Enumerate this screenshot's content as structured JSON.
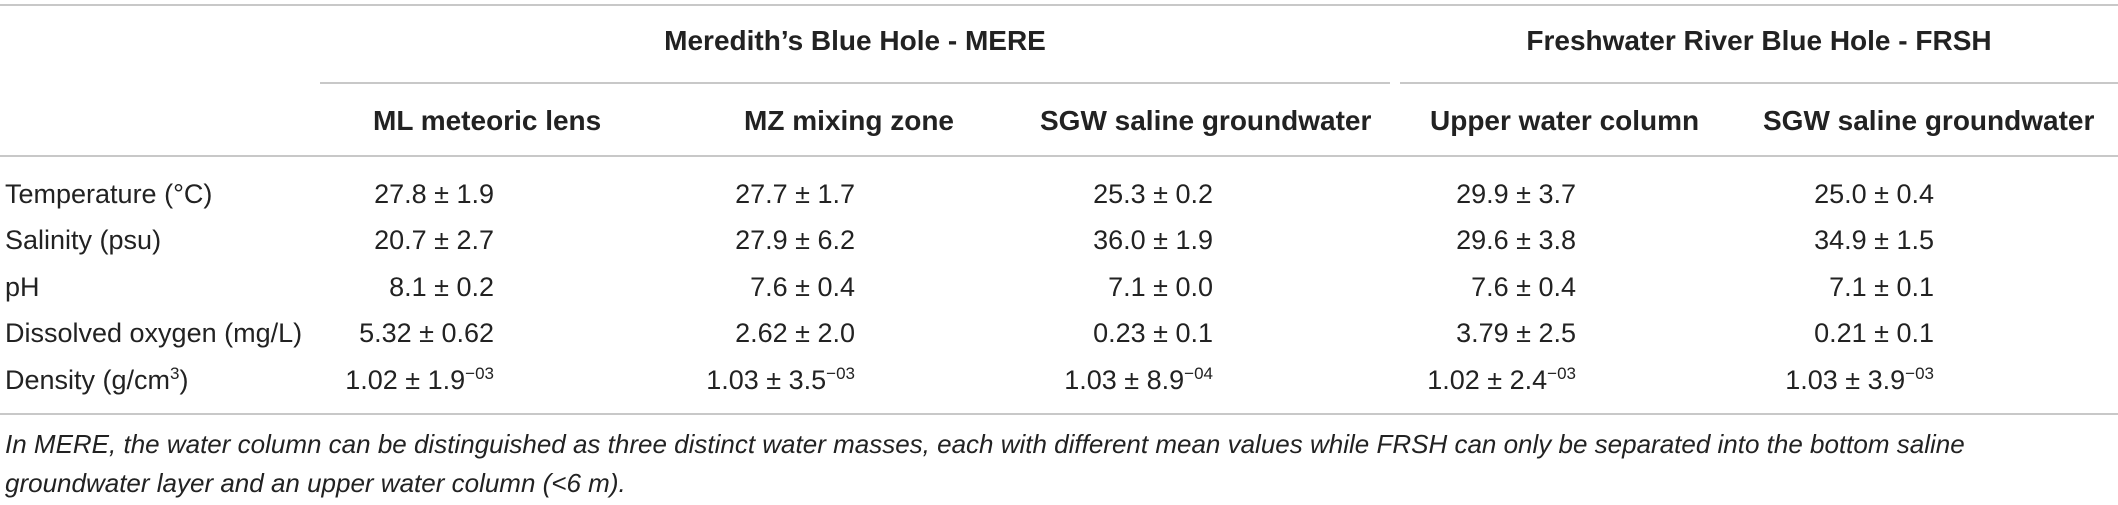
{
  "groups": [
    {
      "title": "Meredith’s Blue Hole - MERE"
    },
    {
      "title": "Freshwater River Blue Hole - FRSH"
    }
  ],
  "columns": [
    "ML meteoric lens",
    "MZ mixing zone",
    "SGW saline groundwater",
    "Upper water column",
    "SGW saline groundwater"
  ],
  "rows": [
    {
      "label": "Temperature (°C)",
      "label_sup": "",
      "label_after": "",
      "cells": [
        {
          "v": "27.8 ± 1.9",
          "exp": ""
        },
        {
          "v": "27.7 ± 1.7",
          "exp": ""
        },
        {
          "v": "25.3 ± 0.2",
          "exp": ""
        },
        {
          "v": "29.9 ± 3.7",
          "exp": ""
        },
        {
          "v": "25.0 ± 0.4",
          "exp": ""
        }
      ]
    },
    {
      "label": "Salinity (psu)",
      "label_sup": "",
      "label_after": "",
      "cells": [
        {
          "v": "20.7 ± 2.7",
          "exp": ""
        },
        {
          "v": "27.9 ± 6.2",
          "exp": ""
        },
        {
          "v": "36.0 ± 1.9",
          "exp": ""
        },
        {
          "v": "29.6 ± 3.8",
          "exp": ""
        },
        {
          "v": "34.9 ± 1.5",
          "exp": ""
        }
      ]
    },
    {
      "label": "pH",
      "label_sup": "",
      "label_after": "",
      "cells": [
        {
          "v": "8.1 ± 0.2",
          "exp": ""
        },
        {
          "v": "7.6 ± 0.4",
          "exp": ""
        },
        {
          "v": "7.1 ± 0.0",
          "exp": ""
        },
        {
          "v": "7.6 ± 0.4",
          "exp": ""
        },
        {
          "v": "7.1 ± 0.1",
          "exp": ""
        }
      ]
    },
    {
      "label": "Dissolved oxygen (mg/L)",
      "label_sup": "",
      "label_after": "",
      "cells": [
        {
          "v": "5.32 ± 0.62",
          "exp": ""
        },
        {
          "v": "2.62 ± 2.0",
          "exp": ""
        },
        {
          "v": "0.23 ± 0.1",
          "exp": ""
        },
        {
          "v": "3.79 ± 2.5",
          "exp": ""
        },
        {
          "v": "0.21 ± 0.1",
          "exp": ""
        }
      ]
    },
    {
      "label": "Density (g/cm",
      "label_sup": "3",
      "label_after": ")",
      "cells": [
        {
          "v": "1.02 ± 1.9",
          "exp": "−03"
        },
        {
          "v": "1.03 ± 3.5",
          "exp": "−03"
        },
        {
          "v": "1.03 ± 8.9",
          "exp": "−04"
        },
        {
          "v": "1.02 ± 2.4",
          "exp": "−03"
        },
        {
          "v": "1.03 ± 3.9",
          "exp": "−03"
        }
      ]
    }
  ],
  "caption": "In MERE, the water column can be distinguished as three distinct water masses, each with different mean values while FRSH can only be separated into the bottom saline groundwater layer and an upper water column (<6 m)."
}
